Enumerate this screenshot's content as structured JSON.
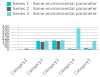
{
  "chart_data": {
    "type": "bar",
    "categories": [
      "Category1",
      "Category2",
      "Category3",
      "Category4",
      "Category5"
    ],
    "series": [
      {
        "name": "Series 1 - Some environmental parameter",
        "color": "#00C8D2",
        "values": [
          8,
          155,
          165,
          25,
          35
        ]
      },
      {
        "name": "Series 2 - Some environmental parameter",
        "color": "#606060",
        "values": [
          18,
          140,
          155,
          15,
          18
        ]
      },
      {
        "name": "Series 3 - Some environmental parameter",
        "color": "#70D8E0",
        "values": [
          10,
          160,
          170,
          380,
          155
        ]
      }
    ],
    "ylim": [
      0,
      420
    ],
    "yticks": [
      0,
      50,
      100,
      150,
      200,
      250,
      300,
      350,
      400
    ],
    "grid": true,
    "legend": "upper right"
  }
}
